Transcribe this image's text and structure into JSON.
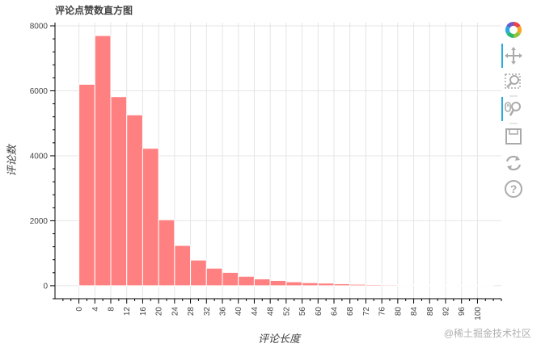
{
  "chart_data": {
    "type": "bar",
    "title": "评论点赞数直方图",
    "xlabel": "评论长度",
    "ylabel": "评论数",
    "bin_width": 4,
    "bins_start": [
      0,
      4,
      8,
      12,
      16,
      20,
      24,
      28,
      32,
      36,
      40,
      44,
      48,
      52,
      56,
      60,
      64,
      68,
      72,
      76,
      80,
      84,
      88,
      92,
      96,
      100
    ],
    "values": [
      6200,
      7700,
      5820,
      5260,
      4230,
      2030,
      1240,
      790,
      540,
      410,
      290,
      210,
      160,
      120,
      95,
      80,
      60,
      45,
      35,
      30,
      25,
      20,
      15,
      10,
      8,
      5
    ],
    "xlim": [
      -6,
      106
    ],
    "ylim": [
      -400,
      8100
    ],
    "x_ticks": [
      0,
      4,
      8,
      12,
      16,
      20,
      24,
      28,
      32,
      36,
      40,
      44,
      48,
      52,
      56,
      60,
      64,
      68,
      72,
      76,
      80,
      84,
      88,
      92,
      96,
      100
    ],
    "y_ticks": [
      0,
      2000,
      4000,
      6000,
      8000
    ],
    "grid": true,
    "bar_color": "#ff8080",
    "bar_edge_color": "#ffffff"
  },
  "toolbar": {
    "items": [
      "bokeh-logo-icon",
      "pan-icon",
      "box-zoom-icon",
      "wheel-zoom-icon",
      "save-icon",
      "reset-icon",
      "help-icon"
    ],
    "active_color": "#26aae1"
  },
  "watermark": "@稀土掘金技术社区"
}
